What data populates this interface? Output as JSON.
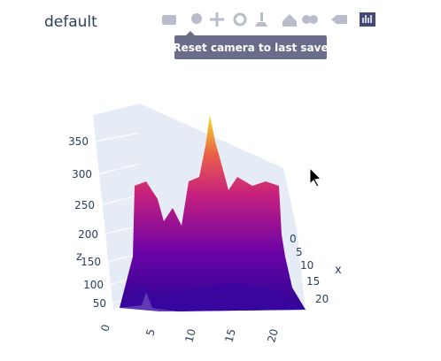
{
  "title": "default",
  "tooltip": "Reset camera to last save",
  "scene": {
    "z_axis": {
      "title": "z",
      "ticks": [
        "50",
        "100",
        "150",
        "200",
        "250",
        "300",
        "350"
      ]
    },
    "x_axis": {
      "title": "x",
      "ticks": [
        "0",
        "5",
        "10",
        "15",
        "20"
      ]
    },
    "y_axis": {
      "ticks": [
        "0",
        "5",
        "10",
        "15",
        "20"
      ]
    }
  }
}
